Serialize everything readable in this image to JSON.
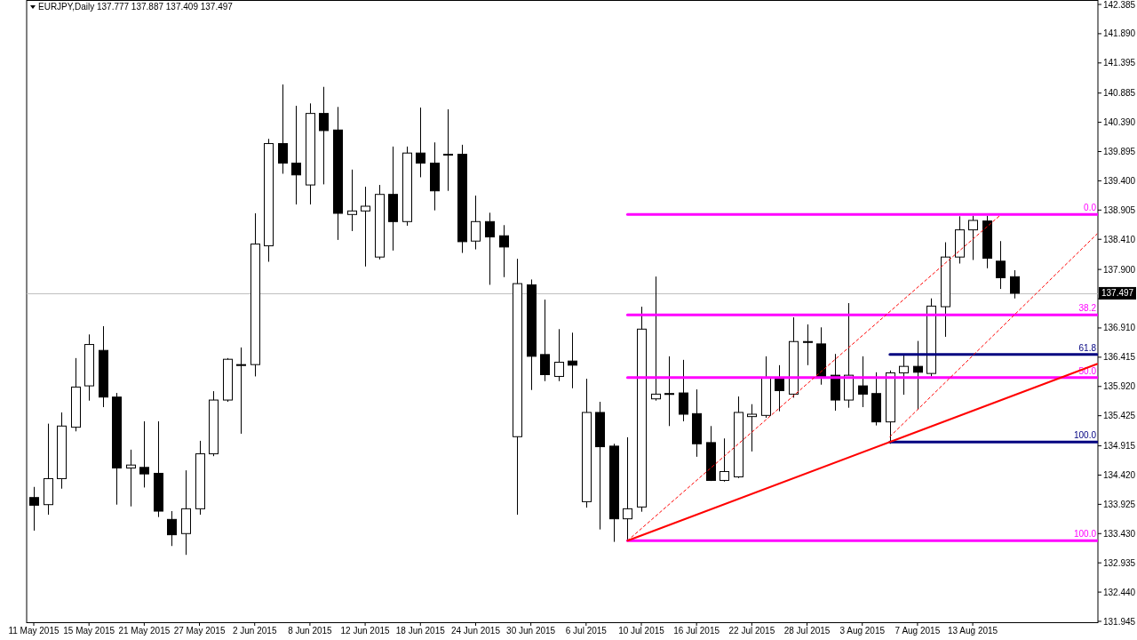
{
  "chart_data": {
    "type": "candlestick",
    "title": "EURJPY,Daily  137.777 137.887 137.409 137.497",
    "categories": [
      "11 May 2015",
      null,
      null,
      null,
      "15 May 2015",
      null,
      null,
      null,
      "21 May 2015",
      null,
      null,
      null,
      "27 May 2015",
      null,
      null,
      null,
      "2 Jun 2015",
      null,
      null,
      null,
      "8 Jun 2015",
      null,
      null,
      null,
      "12 Jun 2015",
      null,
      null,
      null,
      "18 Jun 2015",
      null,
      null,
      null,
      "24 Jun 2015",
      null,
      null,
      null,
      "30 Jun 2015",
      null,
      null,
      null,
      "6 Jul 2015",
      null,
      null,
      null,
      "10 Jul 2015",
      null,
      null,
      null,
      "16 Jul 2015",
      null,
      null,
      null,
      "22 Jul 2015",
      null,
      null,
      null,
      "28 Jul 2015",
      null,
      null,
      null,
      "3 Aug 2015",
      null,
      null,
      null,
      "7 Aug 2015",
      null,
      null,
      null,
      "13 Aug 2015",
      null,
      null,
      null,
      null,
      null,
      null,
      null,
      null,
      null
    ],
    "ohlc": [
      [
        134.04,
        134.22,
        133.48,
        133.91
      ],
      [
        133.92,
        135.29,
        133.75,
        134.36
      ],
      [
        134.36,
        135.48,
        134.19,
        135.25
      ],
      [
        135.23,
        136.4,
        135.16,
        135.91
      ],
      [
        135.93,
        136.8,
        135.68,
        136.63
      ],
      [
        136.53,
        136.94,
        135.57,
        135.74
      ],
      [
        135.74,
        135.81,
        133.92,
        134.54
      ],
      [
        134.54,
        134.85,
        133.89,
        134.59
      ],
      [
        134.55,
        135.33,
        134.21,
        134.44
      ],
      [
        134.45,
        135.33,
        133.71,
        133.81
      ],
      [
        133.67,
        133.81,
        133.22,
        133.41
      ],
      [
        133.43,
        134.5,
        133.07,
        133.85
      ],
      [
        133.85,
        135.0,
        133.75,
        134.78
      ],
      [
        134.78,
        135.84,
        134.74,
        135.69
      ],
      [
        135.69,
        136.4,
        135.66,
        136.38
      ],
      [
        136.29,
        136.58,
        135.12,
        136.28
      ],
      [
        136.29,
        138.85,
        136.09,
        138.33
      ],
      [
        138.3,
        140.11,
        138.03,
        140.03
      ],
      [
        140.03,
        141.03,
        139.52,
        139.7
      ],
      [
        139.7,
        140.67,
        139.0,
        139.5
      ],
      [
        139.33,
        140.71,
        139.0,
        140.54
      ],
      [
        140.54,
        140.99,
        139.34,
        140.25
      ],
      [
        140.26,
        140.65,
        138.4,
        138.85
      ],
      [
        138.83,
        139.59,
        138.55,
        138.89
      ],
      [
        138.89,
        139.3,
        137.95,
        138.97
      ],
      [
        138.11,
        139.33,
        138.07,
        139.17
      ],
      [
        139.17,
        139.98,
        138.22,
        138.71
      ],
      [
        138.71,
        139.98,
        138.64,
        139.87
      ],
      [
        139.87,
        140.64,
        139.46,
        139.7
      ],
      [
        139.7,
        140.05,
        138.9,
        139.23
      ],
      [
        139.85,
        140.61,
        139.23,
        139.84
      ],
      [
        139.85,
        140.01,
        138.18,
        138.37
      ],
      [
        138.38,
        139.15,
        138.24,
        138.71
      ],
      [
        138.71,
        138.86,
        137.64,
        138.45
      ],
      [
        138.47,
        138.65,
        137.77,
        138.28
      ],
      [
        135.07,
        138.08,
        133.75,
        137.66
      ],
      [
        137.64,
        137.73,
        135.86,
        136.43
      ],
      [
        136.46,
        137.39,
        136.01,
        136.12
      ],
      [
        136.09,
        136.89,
        136.01,
        136.33
      ],
      [
        136.35,
        136.83,
        135.89,
        136.28
      ],
      [
        133.97,
        136.05,
        133.87,
        135.48
      ],
      [
        135.48,
        135.66,
        133.5,
        134.9
      ],
      [
        134.91,
        134.95,
        133.29,
        133.68
      ],
      [
        133.68,
        135.06,
        133.3,
        133.85
      ],
      [
        133.88,
        137.27,
        133.8,
        136.89
      ],
      [
        135.71,
        137.78,
        135.68,
        135.79
      ],
      [
        135.8,
        136.43,
        135.25,
        135.79
      ],
      [
        135.81,
        136.37,
        135.33,
        135.45
      ],
      [
        135.46,
        135.87,
        134.73,
        134.95
      ],
      [
        134.97,
        135.25,
        134.32,
        134.33
      ],
      [
        134.33,
        135.04,
        134.31,
        134.48
      ],
      [
        134.39,
        135.75,
        134.37,
        135.48
      ],
      [
        135.41,
        135.62,
        134.82,
        135.45
      ],
      [
        135.43,
        136.43,
        135.39,
        136.07
      ],
      [
        136.07,
        136.28,
        135.5,
        135.85
      ],
      [
        135.79,
        137.09,
        135.73,
        136.68
      ],
      [
        136.68,
        136.97,
        136.28,
        136.67
      ],
      [
        136.64,
        136.92,
        135.95,
        136.08
      ],
      [
        136.11,
        136.47,
        135.51,
        135.69
      ],
      [
        135.69,
        137.33,
        135.56,
        136.11
      ],
      [
        135.93,
        136.43,
        135.57,
        135.79
      ],
      [
        135.8,
        136.16,
        135.26,
        135.32
      ],
      [
        135.32,
        136.19,
        134.95,
        136.15
      ],
      [
        136.15,
        136.45,
        135.78,
        136.26
      ],
      [
        136.26,
        136.69,
        135.53,
        136.16
      ],
      [
        136.14,
        137.41,
        136.09,
        137.28
      ],
      [
        137.27,
        138.36,
        136.76,
        138.11
      ],
      [
        138.11,
        138.8,
        138.0,
        138.57
      ],
      [
        138.57,
        138.81,
        138.06,
        138.73
      ],
      [
        138.72,
        138.81,
        137.92,
        138.09
      ],
      [
        138.04,
        138.38,
        137.57,
        137.76
      ],
      [
        137.777,
        137.887,
        137.409,
        137.497
      ],
      null,
      null,
      null,
      null,
      null,
      null
    ],
    "series": [
      {
        "type": "line",
        "name": "0.0",
        "color": "#ff00ff",
        "values": [
          null,
          null,
          null,
          null,
          null,
          null,
          null,
          null,
          null,
          null,
          null,
          null,
          null,
          null,
          null,
          null,
          null,
          null,
          null,
          null,
          null,
          null,
          null,
          null,
          null,
          null,
          null,
          null,
          null,
          null,
          null,
          null,
          null,
          null,
          null,
          null,
          null,
          null,
          null,
          null,
          null,
          null,
          null,
          138.83,
          null,
          null,
          null,
          null,
          null,
          null,
          null,
          null,
          null,
          null,
          null,
          null,
          null,
          null,
          null,
          null,
          null,
          null,
          null,
          null,
          null,
          null,
          null,
          null,
          null,
          null,
          null,
          null,
          null,
          null,
          null,
          null,
          null,
          138.83
        ]
      },
      {
        "type": "line",
        "name": "38.2",
        "color": "#ff00ff",
        "values": [
          null,
          null,
          null,
          null,
          null,
          null,
          null,
          null,
          null,
          null,
          null,
          null,
          null,
          null,
          null,
          null,
          null,
          null,
          null,
          null,
          null,
          null,
          null,
          null,
          null,
          null,
          null,
          null,
          null,
          null,
          null,
          null,
          null,
          null,
          null,
          null,
          null,
          null,
          null,
          null,
          null,
          null,
          null,
          137.13,
          null,
          null,
          null,
          null,
          null,
          null,
          null,
          null,
          null,
          null,
          null,
          null,
          null,
          null,
          null,
          null,
          null,
          null,
          null,
          null,
          null,
          null,
          null,
          null,
          null,
          null,
          null,
          null,
          null,
          null,
          null,
          null,
          null,
          137.13
        ]
      },
      {
        "type": "line",
        "name": "50.0",
        "color": "#ff00ff",
        "values": [
          null,
          null,
          null,
          null,
          null,
          null,
          null,
          null,
          null,
          null,
          null,
          null,
          null,
          null,
          null,
          null,
          null,
          null,
          null,
          null,
          null,
          null,
          null,
          null,
          null,
          null,
          null,
          null,
          null,
          null,
          null,
          null,
          null,
          null,
          null,
          null,
          null,
          null,
          null,
          null,
          null,
          null,
          null,
          136.07,
          null,
          null,
          null,
          null,
          null,
          null,
          null,
          null,
          null,
          null,
          null,
          null,
          null,
          null,
          null,
          null,
          null,
          null,
          null,
          null,
          null,
          null,
          null,
          null,
          null,
          null,
          null,
          null,
          null,
          null,
          null,
          null,
          null,
          136.07
        ]
      },
      {
        "type": "line",
        "name": "100.0",
        "color": "#ff00ff",
        "values": [
          null,
          null,
          null,
          null,
          null,
          null,
          null,
          null,
          null,
          null,
          null,
          null,
          null,
          null,
          null,
          null,
          null,
          null,
          null,
          null,
          null,
          null,
          null,
          null,
          null,
          null,
          null,
          null,
          null,
          null,
          null,
          null,
          null,
          null,
          null,
          null,
          null,
          null,
          null,
          null,
          null,
          null,
          null,
          133.31,
          null,
          null,
          null,
          null,
          null,
          null,
          null,
          null,
          null,
          null,
          null,
          null,
          null,
          null,
          null,
          null,
          null,
          null,
          null,
          null,
          null,
          null,
          null,
          null,
          null,
          null,
          null,
          null,
          null,
          null,
          null,
          null,
          null,
          133.31
        ]
      },
      {
        "type": "line",
        "name": "61.8",
        "color": "#000080",
        "values": [
          null,
          null,
          null,
          null,
          null,
          null,
          null,
          null,
          null,
          null,
          null,
          null,
          null,
          null,
          null,
          null,
          null,
          null,
          null,
          null,
          null,
          null,
          null,
          null,
          null,
          null,
          null,
          null,
          null,
          null,
          null,
          null,
          null,
          null,
          null,
          null,
          null,
          null,
          null,
          null,
          null,
          null,
          null,
          null,
          null,
          null,
          null,
          null,
          null,
          null,
          null,
          null,
          null,
          null,
          null,
          null,
          null,
          null,
          null,
          null,
          null,
          null,
          136.46,
          null,
          null,
          null,
          null,
          null,
          null,
          null,
          null,
          null,
          null,
          null,
          null,
          null,
          null,
          136.46
        ]
      },
      {
        "type": "line",
        "name": "100.0",
        "color": "#000080",
        "values": [
          null,
          null,
          null,
          null,
          null,
          null,
          null,
          null,
          null,
          null,
          null,
          null,
          null,
          null,
          null,
          null,
          null,
          null,
          null,
          null,
          null,
          null,
          null,
          null,
          null,
          null,
          null,
          null,
          null,
          null,
          null,
          null,
          null,
          null,
          null,
          null,
          null,
          null,
          null,
          null,
          null,
          null,
          null,
          null,
          null,
          null,
          null,
          null,
          null,
          null,
          null,
          null,
          null,
          null,
          null,
          null,
          null,
          null,
          null,
          null,
          null,
          null,
          134.98,
          null,
          null,
          null,
          null,
          null,
          null,
          null,
          null,
          null,
          null,
          null,
          null,
          null,
          null,
          134.98
        ]
      },
      {
        "type": "line",
        "color": "#ff0000",
        "values": [
          null,
          null,
          null,
          null,
          null,
          null,
          null,
          null,
          null,
          null,
          null,
          null,
          null,
          null,
          null,
          null,
          null,
          null,
          null,
          null,
          null,
          null,
          null,
          null,
          null,
          null,
          null,
          null,
          null,
          null,
          null,
          null,
          null,
          null,
          null,
          null,
          null,
          null,
          null,
          null,
          null,
          null,
          null,
          133.31,
          null,
          null,
          null,
          null,
          null,
          null,
          null,
          null,
          null,
          null,
          null,
          null,
          null,
          null,
          null,
          null,
          null,
          null,
          null,
          null,
          null,
          null,
          null,
          null,
          null,
          null,
          null,
          null,
          null,
          null,
          null,
          null,
          null,
          136.3
        ]
      },
      {
        "type": "line",
        "color": "#ff0000",
        "line_style": "dashed",
        "values": [
          null,
          null,
          null,
          null,
          null,
          null,
          null,
          null,
          null,
          null,
          null,
          null,
          null,
          null,
          null,
          null,
          null,
          null,
          null,
          null,
          null,
          null,
          null,
          null,
          null,
          null,
          null,
          null,
          null,
          null,
          null,
          null,
          null,
          null,
          null,
          null,
          null,
          null,
          null,
          null,
          null,
          null,
          null,
          133.31,
          null,
          null,
          null,
          null,
          null,
          null,
          null,
          null,
          null,
          null,
          null,
          null,
          null,
          null,
          null,
          null,
          null,
          null,
          null,
          null,
          null,
          null,
          null,
          null,
          null,
          null,
          138.82,
          null,
          null,
          null,
          null,
          null,
          null,
          null
        ]
      },
      {
        "type": "line",
        "color": "#ff0000",
        "line_style": "dashed",
        "values": [
          null,
          null,
          null,
          null,
          null,
          null,
          null,
          null,
          null,
          null,
          null,
          null,
          null,
          null,
          null,
          null,
          null,
          null,
          null,
          null,
          null,
          null,
          null,
          null,
          null,
          null,
          null,
          null,
          null,
          null,
          null,
          null,
          null,
          null,
          null,
          null,
          null,
          null,
          null,
          null,
          null,
          null,
          null,
          null,
          null,
          null,
          null,
          null,
          null,
          null,
          null,
          null,
          null,
          null,
          null,
          null,
          null,
          null,
          null,
          null,
          null,
          null,
          135.07,
          null,
          null,
          null,
          null,
          null,
          null,
          null,
          null,
          null,
          null,
          null,
          null,
          null,
          null,
          138.5
        ]
      }
    ],
    "ref_lines": [
      {
        "axis": "y",
        "value": 137.497,
        "label": "137.497",
        "color": "#c0c0c0"
      }
    ],
    "ylim": [
      131.93,
      142.46
    ],
    "yticks": [
      142.385,
      {
        "value": 141.89,
        "label": "141.890"
      },
      141.395,
      140.885,
      {
        "value": 140.39,
        "label": "140.390"
      },
      139.895,
      {
        "value": 139.4,
        "label": "139.400"
      },
      138.905,
      {
        "value": 138.41,
        "label": "138.410"
      },
      {
        "value": 137.9,
        "label": "137.900"
      },
      {
        "value": 137.405,
        "label": null
      },
      {
        "value": 136.91,
        "label": "136.910"
      },
      136.415,
      {
        "value": 135.92,
        "label": "135.920"
      },
      135.425,
      134.915,
      {
        "value": 134.42,
        "label": "134.420"
      },
      133.925,
      {
        "value": 133.43,
        "label": "133.430"
      },
      132.935,
      {
        "value": 132.44,
        "label": "132.440"
      },
      131.945
    ]
  }
}
